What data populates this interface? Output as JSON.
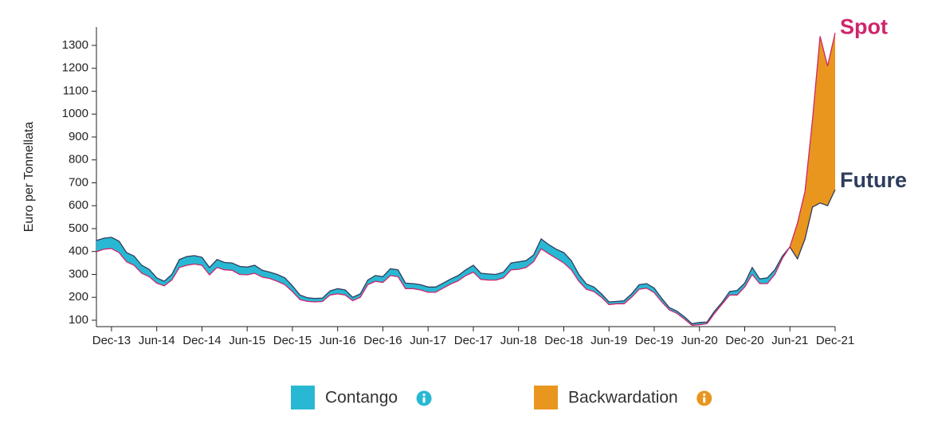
{
  "chart_data": {
    "type": "spread-area",
    "y_label": "Euro per Tonnellata",
    "categories": [
      null,
      null,
      "Dec-13",
      null,
      null,
      null,
      null,
      null,
      "Jun-14",
      null,
      null,
      null,
      null,
      null,
      "Dec-14",
      null,
      null,
      null,
      null,
      null,
      "Jun-15",
      null,
      null,
      null,
      null,
      null,
      "Dec-15",
      null,
      null,
      null,
      null,
      null,
      "Jun-16",
      null,
      null,
      null,
      null,
      null,
      "Dec-16",
      null,
      null,
      null,
      null,
      null,
      "Jun-17",
      null,
      null,
      null,
      null,
      null,
      "Dec-17",
      null,
      null,
      null,
      null,
      null,
      "Jun-18",
      null,
      null,
      null,
      null,
      null,
      "Dec-18",
      null,
      null,
      null,
      null,
      null,
      "Jun-19",
      null,
      null,
      null,
      null,
      null,
      "Dec-19",
      null,
      null,
      null,
      null,
      null,
      "Jun-20",
      null,
      null,
      null,
      null,
      null,
      "Dec-20",
      null,
      null,
      null,
      null,
      null,
      "Jun-21",
      null,
      null,
      null,
      null,
      null,
      "Dec-21"
    ],
    "series": [
      {
        "name": "Spot",
        "color": "#d0256c",
        "values": [
          399,
          410,
          413,
          395,
          355,
          340,
          305,
          290,
          262,
          250,
          275,
          330,
          340,
          345,
          340,
          298,
          330,
          320,
          318,
          300,
          298,
          305,
          288,
          282,
          270,
          255,
          225,
          190,
          182,
          180,
          182,
          210,
          215,
          210,
          185,
          200,
          255,
          270,
          265,
          295,
          290,
          238,
          238,
          232,
          222,
          222,
          240,
          258,
          272,
          295,
          310,
          278,
          275,
          275,
          285,
          320,
          322,
          330,
          355,
          412,
          390,
          370,
          350,
          320,
          270,
          235,
          225,
          200,
          168,
          172,
          172,
          200,
          235,
          240,
          220,
          180,
          145,
          130,
          105,
          78,
          80,
          85,
          130,
          170,
          210,
          210,
          245,
          300,
          260,
          260,
          300,
          370,
          420,
          524,
          663,
          977,
          1340,
          1210,
          1355
        ]
      },
      {
        "name": "Future",
        "color": "#2e3d5c",
        "values": [
          448,
          458,
          462,
          445,
          395,
          380,
          340,
          322,
          285,
          270,
          300,
          365,
          378,
          382,
          375,
          330,
          365,
          352,
          350,
          335,
          332,
          340,
          318,
          310,
          300,
          285,
          250,
          210,
          198,
          195,
          197,
          228,
          238,
          232,
          200,
          215,
          275,
          295,
          290,
          325,
          320,
          262,
          260,
          255,
          245,
          245,
          262,
          280,
          295,
          320,
          340,
          305,
          302,
          300,
          310,
          350,
          355,
          360,
          385,
          455,
          430,
          410,
          395,
          360,
          300,
          258,
          245,
          215,
          180,
          182,
          185,
          215,
          255,
          260,
          240,
          195,
          155,
          140,
          115,
          85,
          90,
          92,
          140,
          178,
          225,
          230,
          262,
          330,
          280,
          285,
          320,
          380,
          420,
          368,
          455,
          594,
          612,
          600,
          670
        ]
      }
    ],
    "legend": [
      {
        "label": "Contango",
        "color": "#29b8d3"
      },
      {
        "label": "Backwardation",
        "color": "#e8961e"
      }
    ],
    "ylim": [
      72,
      1380
    ],
    "yticks": [
      100,
      200,
      300,
      400,
      500,
      600,
      700,
      800,
      900,
      1000,
      1100,
      1200,
      1300
    ]
  }
}
